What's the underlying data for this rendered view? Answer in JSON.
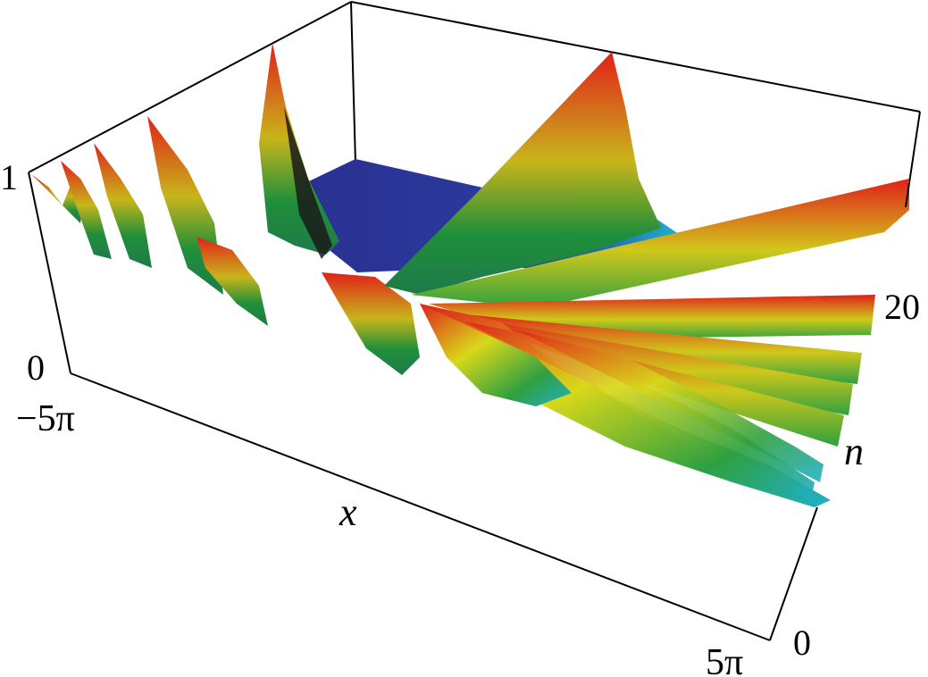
{
  "chart_data": {
    "type": "surface3d",
    "title": "",
    "xlabel": "x",
    "ylabel": "n",
    "zlabel": "",
    "x_ticks": [
      "−5π",
      "5π"
    ],
    "n_ticks": [
      "0",
      "20"
    ],
    "z_ticks": [
      "0",
      "1"
    ],
    "xlim": [
      -15.708,
      15.708
    ],
    "nlim": [
      0,
      20
    ],
    "zlim": [
      0,
      1
    ],
    "surface_description_values": {
      "peak_near_x": 0,
      "peak_z": 1
    },
    "colormap": [
      "#2a2f8f",
      "#1fb8c8",
      "#1f8f3a",
      "#d8d81a",
      "#e0201a"
    ]
  }
}
